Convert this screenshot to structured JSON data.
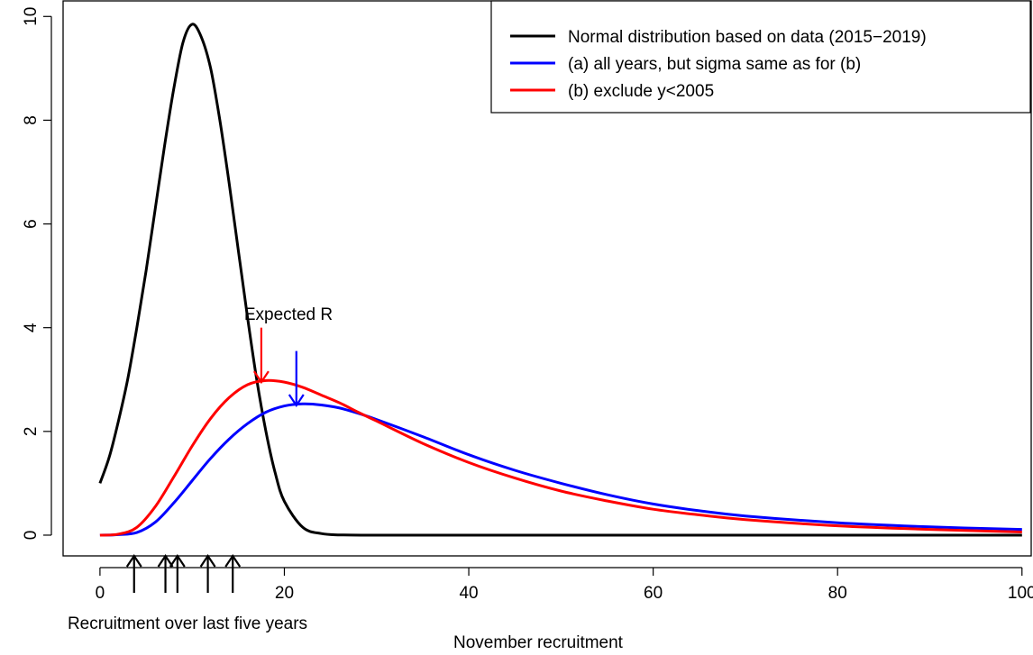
{
  "chart_data": {
    "type": "line",
    "xlabel": "November recruitment",
    "ylabel": "",
    "xlim": [
      -4,
      101
    ],
    "ylim": [
      -0.4,
      10.3
    ],
    "xticks": [
      0,
      20,
      40,
      60,
      80,
      100
    ],
    "yticks": [
      0,
      2,
      4,
      6,
      8,
      10
    ],
    "grid": false,
    "legend_position": "top-right",
    "series": [
      {
        "name": "Normal distribution based on data (2015−2019)",
        "color": "#000000",
        "x": [
          0,
          1,
          2,
          3,
          4,
          5,
          6,
          7,
          8,
          9,
          10,
          11,
          12,
          13,
          14,
          15,
          16,
          17,
          18,
          19,
          20,
          22,
          24,
          26,
          30,
          40,
          60,
          80,
          100
        ],
        "y": [
          1.0,
          1.5,
          2.2,
          3.0,
          4.0,
          5.1,
          6.3,
          7.5,
          8.6,
          9.5,
          9.85,
          9.6,
          9.0,
          8.0,
          6.8,
          5.5,
          4.2,
          3.0,
          2.0,
          1.2,
          0.65,
          0.15,
          0.03,
          0.005,
          0,
          0,
          0,
          0,
          0
        ]
      },
      {
        "name": "(a) all years, but sigma same as for (b)",
        "color": "#0000ff",
        "x": [
          0,
          2,
          4,
          6,
          8,
          10,
          12,
          14,
          16,
          18,
          20,
          22,
          24,
          26,
          28,
          30,
          35,
          40,
          45,
          50,
          55,
          60,
          65,
          70,
          80,
          90,
          100
        ],
        "y": [
          0,
          0.01,
          0.05,
          0.25,
          0.62,
          1.05,
          1.48,
          1.85,
          2.15,
          2.37,
          2.49,
          2.53,
          2.51,
          2.45,
          2.35,
          2.23,
          1.9,
          1.55,
          1.25,
          1.0,
          0.78,
          0.6,
          0.47,
          0.37,
          0.24,
          0.16,
          0.11
        ]
      },
      {
        "name": "(b) exclude y<2005",
        "color": "#ff0000",
        "x": [
          0,
          2,
          4,
          6,
          8,
          10,
          12,
          14,
          16,
          18,
          20,
          22,
          24,
          26,
          28,
          30,
          35,
          40,
          45,
          50,
          55,
          60,
          65,
          70,
          80,
          90,
          100
        ],
        "y": [
          0,
          0.02,
          0.15,
          0.55,
          1.12,
          1.72,
          2.25,
          2.65,
          2.9,
          2.98,
          2.95,
          2.85,
          2.7,
          2.55,
          2.37,
          2.2,
          1.77,
          1.4,
          1.1,
          0.85,
          0.66,
          0.5,
          0.39,
          0.3,
          0.18,
          0.11,
          0.06
        ]
      }
    ],
    "annotations": {
      "expected_label": "Expected R",
      "expected_arrows": [
        {
          "x": 17.5,
          "y_from": 4.0,
          "y_to": 2.95,
          "color": "#ff0000"
        },
        {
          "x": 21.3,
          "y_from": 3.55,
          "y_to": 2.5,
          "color": "#0000ff"
        }
      ],
      "recruitment_label": "Recruitment over last five years",
      "recruitment_arrows_x": [
        3.7,
        7.1,
        8.4,
        11.7,
        14.4
      ]
    }
  }
}
